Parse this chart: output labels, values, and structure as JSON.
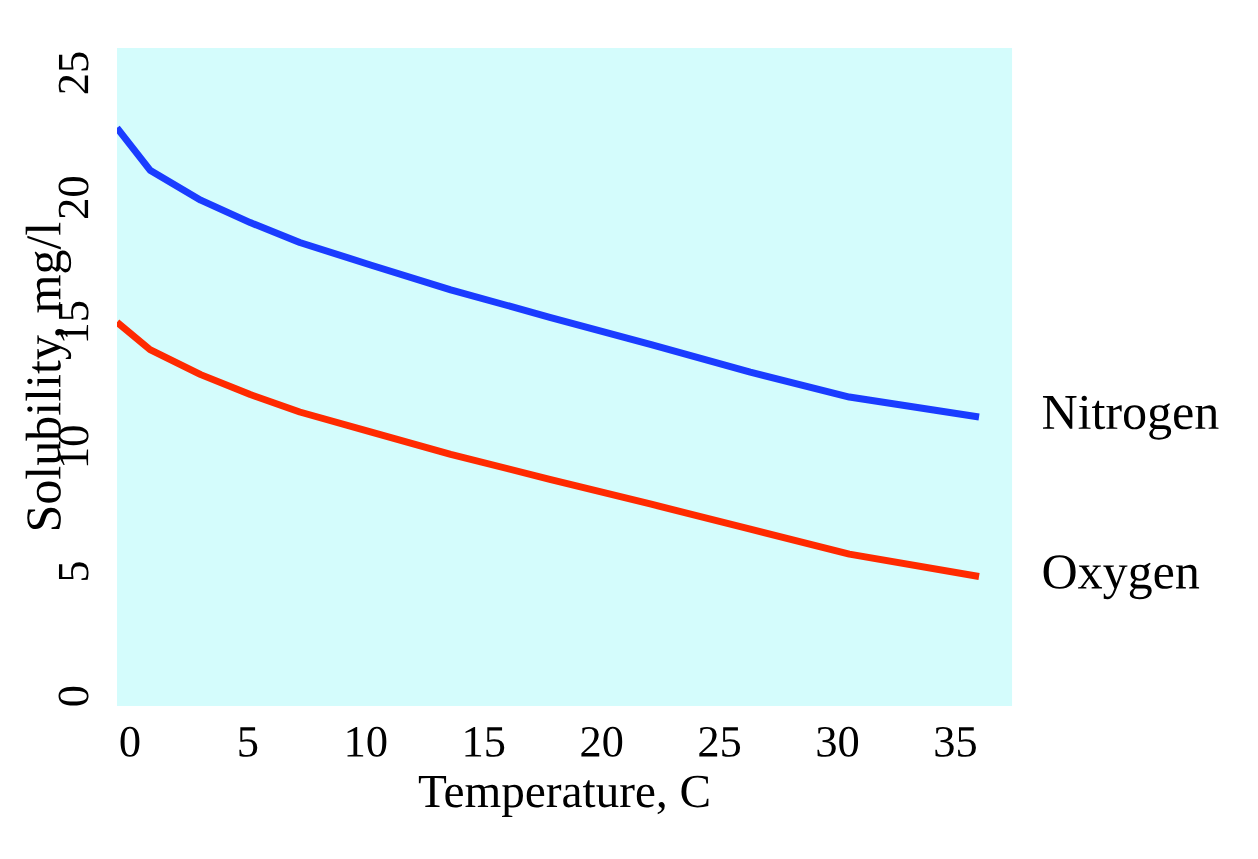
{
  "chart_data": {
    "type": "line",
    "xlabel": "Temperature, C",
    "ylabel": "Solubility, mg/l",
    "xlim": [
      -0.55,
      37.4
    ],
    "xticks": [
      0,
      5,
      10,
      15,
      20,
      25,
      30,
      35
    ],
    "ylim": [
      -0.4,
      26
    ],
    "yticks": [
      0,
      5,
      10,
      15,
      20,
      25
    ],
    "grid": false,
    "legend": false,
    "marker": "none",
    "line_style": "solid",
    "series": [
      {
        "name": "Nitrogen",
        "color": "#1a3cff",
        "x": [
          -0.55,
          0.85,
          3.0,
          5.1,
          7.2,
          10.2,
          13.6,
          17.8,
          22.1,
          26.3,
          30.5,
          36
        ],
        "values": [
          22.8,
          21.1,
          19.9,
          19.0,
          18.2,
          17.3,
          16.3,
          15.2,
          14.1,
          13.0,
          12.0,
          11.2
        ]
      },
      {
        "name": "Oxygen",
        "color": "#ff2a00",
        "x": [
          -0.55,
          0.85,
          3.0,
          5.1,
          7.2,
          10.2,
          13.6,
          17.8,
          22.1,
          26.3,
          30.5,
          36
        ],
        "values": [
          15.0,
          13.9,
          12.9,
          12.1,
          11.4,
          10.6,
          9.7,
          8.7,
          7.7,
          6.7,
          5.7,
          4.8
        ]
      }
    ]
  }
}
